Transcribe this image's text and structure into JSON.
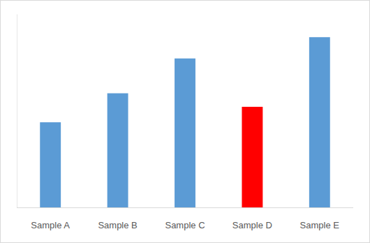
{
  "chart_data": {
    "type": "bar",
    "categories": [
      "Sample A",
      "Sample B",
      "Sample C",
      "Sample D",
      "Sample E"
    ],
    "values": [
      44,
      59,
      77,
      52,
      88
    ],
    "colors": [
      "#5b9bd5",
      "#5b9bd5",
      "#5b9bd5",
      "#ff0000",
      "#5b9bd5"
    ],
    "ylim": [
      0,
      100
    ],
    "tick_labels": "x",
    "grid": false
  }
}
